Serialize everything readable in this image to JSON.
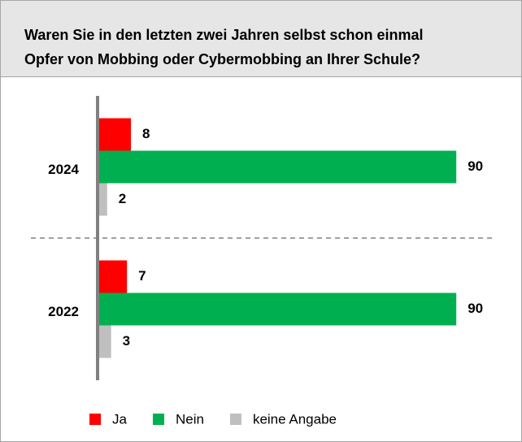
{
  "chart_data": {
    "type": "hbar",
    "title": [
      "Waren Sie in den letzten zwei Jahren selbst schon einmal",
      "Opfer von Mobbing oder Cybermobbing an Ihrer Schule?"
    ],
    "categories": [
      "2024",
      "2022"
    ],
    "series": [
      {
        "name": "Ja",
        "color": "#ff0000",
        "values": [
          8,
          7
        ]
      },
      {
        "name": "Nein",
        "color": "#00b050",
        "values": [
          90,
          90
        ]
      },
      {
        "name": "keine Angabe",
        "color": "#bfbfbf",
        "values": [
          2,
          3
        ]
      }
    ],
    "xlim": [
      0,
      100
    ],
    "legend": "bottom"
  }
}
